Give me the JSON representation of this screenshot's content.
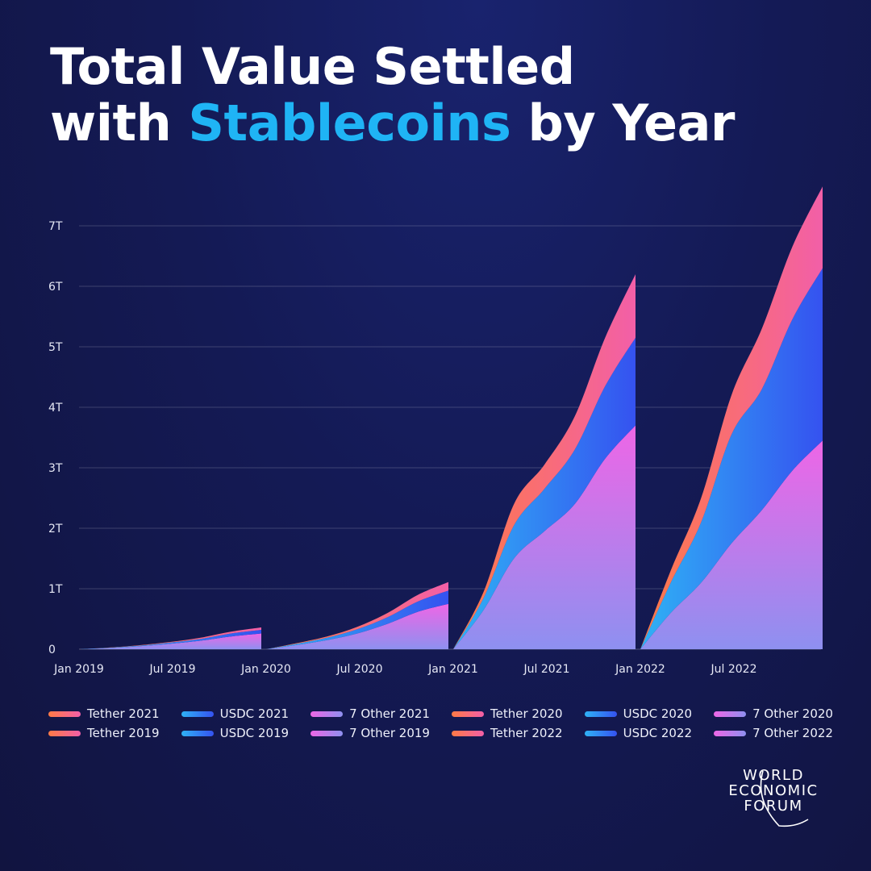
{
  "title": {
    "line1": "Total Value Settled",
    "line2_pre": "with",
    "line2_accent": "Stablecoins",
    "line2_post": "by Year"
  },
  "colors": {
    "tether": [
      "#ff7a45",
      "#f25fa8"
    ],
    "usdc": [
      "#2fb2f5",
      "#3552f0"
    ],
    "other": [
      "#ee66e6",
      "#8e90f0"
    ],
    "accent": "#1fb4f5"
  },
  "chart_data": {
    "type": "area",
    "title": "Total Value Settled with Stablecoins by Year",
    "xlabel": "",
    "ylabel": "",
    "x_ticks": [
      "Jan 2019",
      "Jul 2019",
      "Jan 2020",
      "Jul 2020",
      "Jan 2021",
      "Jul 2021",
      "Jan 2022",
      "Jul 2022"
    ],
    "y_ticks": [
      "0",
      "1T",
      "2T",
      "3T",
      "4T",
      "5T",
      "6T",
      "7T"
    ],
    "ylim": [
      0,
      7
    ],
    "y_unit": "T",
    "grid": true,
    "stacked": true,
    "cumulative_within_year": true,
    "years": [
      {
        "year": 2019,
        "x": [
          "Jan 2019",
          "Mar 2019",
          "May 2019",
          "Jul 2019",
          "Sep 2019",
          "Nov 2019",
          "Dec 2019"
        ],
        "series": [
          {
            "name": "7 Other 2019",
            "values": [
              0,
              0.02,
              0.05,
              0.09,
              0.14,
              0.21,
              0.26
            ]
          },
          {
            "name": "USDC 2019",
            "values": [
              0,
              0.005,
              0.01,
              0.02,
              0.03,
              0.05,
              0.06
            ]
          },
          {
            "name": "Tether 2019",
            "values": [
              0,
              0.003,
              0.007,
              0.01,
              0.02,
              0.03,
              0.04
            ]
          }
        ]
      },
      {
        "year": 2020,
        "x": [
          "Jan 2020",
          "Mar 2020",
          "May 2020",
          "Jul 2020",
          "Sep 2020",
          "Nov 2020",
          "Dec 2020"
        ],
        "series": [
          {
            "name": "7 Other 2020",
            "values": [
              0,
              0.07,
              0.15,
              0.26,
              0.42,
              0.62,
              0.75
            ]
          },
          {
            "name": "USDC 2020",
            "values": [
              0,
              0.02,
              0.04,
              0.07,
              0.11,
              0.17,
              0.22
            ]
          },
          {
            "name": "Tether 2020",
            "values": [
              0,
              0.01,
              0.02,
              0.04,
              0.07,
              0.11,
              0.14
            ]
          }
        ]
      },
      {
        "year": 2021,
        "x": [
          "Jan 2021",
          "Mar 2021",
          "May 2021",
          "Jul 2021",
          "Sep 2021",
          "Nov 2021",
          "Dec 2021"
        ],
        "series": [
          {
            "name": "7 Other 2021",
            "values": [
              0,
              0.65,
              1.5,
              1.95,
              2.4,
              3.15,
              3.7
            ]
          },
          {
            "name": "USDC 2021",
            "values": [
              0,
              0.2,
              0.55,
              0.7,
              0.9,
              1.2,
              1.45
            ]
          },
          {
            "name": "Tether 2021",
            "values": [
              0,
              0.1,
              0.35,
              0.4,
              0.55,
              0.8,
              1.05
            ]
          }
        ]
      },
      {
        "year": 2022,
        "x": [
          "Jan 2022",
          "Mar 2022",
          "May 2022",
          "Jul 2022",
          "Sep 2022",
          "Nov 2022",
          "Dec 2022"
        ],
        "series": [
          {
            "name": "7 Other 2022",
            "values": [
              0,
              0.6,
              1.1,
              1.75,
              2.3,
              2.95,
              3.45
            ]
          },
          {
            "name": "USDC 2022",
            "values": [
              0,
              0.5,
              1.0,
              1.8,
              2.0,
              2.5,
              2.85
            ]
          },
          {
            "name": "Tether 2022",
            "values": [
              0,
              0.2,
              0.4,
              0.65,
              1.0,
              1.2,
              1.35
            ]
          }
        ]
      }
    ]
  },
  "legend": [
    {
      "label": "Tether 2021",
      "kind": "tether"
    },
    {
      "label": "USDC 2021",
      "kind": "usdc"
    },
    {
      "label": "7 Other 2021",
      "kind": "other"
    },
    {
      "label": "Tether 2020",
      "kind": "tether"
    },
    {
      "label": "USDC 2020",
      "kind": "usdc"
    },
    {
      "label": "7 Other 2020",
      "kind": "other"
    },
    {
      "label": "Tether 2019",
      "kind": "tether"
    },
    {
      "label": "USDC 2019",
      "kind": "usdc"
    },
    {
      "label": "7 Other 2019",
      "kind": "other"
    },
    {
      "label": "Tether 2022",
      "kind": "tether"
    },
    {
      "label": "USDC 2022",
      "kind": "usdc"
    },
    {
      "label": "7 Other 2022",
      "kind": "other"
    }
  ],
  "logo": {
    "line1": "WORLD",
    "line2": "ECONOMIC",
    "line3": "FORUM",
    "icon": "wef-arc-logo"
  }
}
